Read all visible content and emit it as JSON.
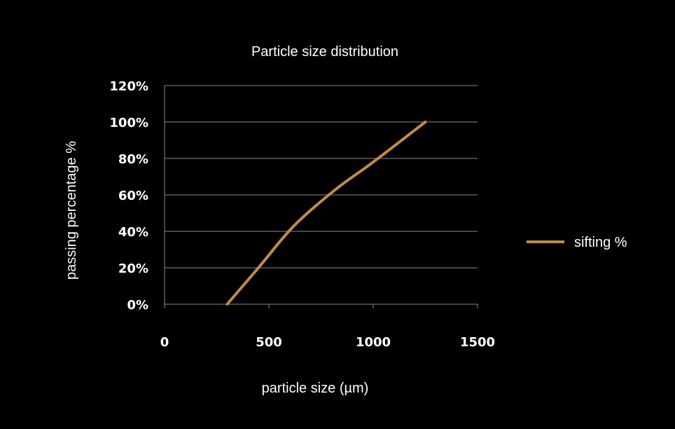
{
  "chart_data": {
    "type": "line",
    "title": "Particle size distribution",
    "xlabel": "particle size (µm)",
    "ylabel": "passing percentage  %",
    "xlim": [
      0,
      1500
    ],
    "ylim": [
      0,
      1.2
    ],
    "x_ticks": [
      0,
      500,
      1000,
      1500
    ],
    "x_tick_labels": [
      "0",
      "500",
      "1000",
      "1500"
    ],
    "y_ticks": [
      0,
      0.2,
      0.4,
      0.6,
      0.8,
      1.0,
      1.2
    ],
    "y_tick_labels": [
      "0%",
      "20%",
      "40%",
      "60%",
      "80%",
      "100%",
      "120%"
    ],
    "grid": true,
    "legend_position": "right",
    "series": [
      {
        "name": "sifting %",
        "color": "#c08a4a",
        "x": [
          300,
          450,
          620,
          820,
          1000,
          1250
        ],
        "y": [
          0,
          0.2,
          0.43,
          0.63,
          0.78,
          1.0
        ]
      }
    ]
  }
}
